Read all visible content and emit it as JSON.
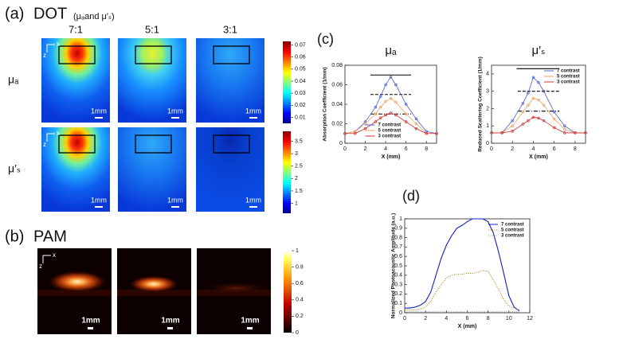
{
  "panel_a": {
    "label": "(a)",
    "title": "DOT",
    "subtitle": "(μₐand μ′ₛ)",
    "columns": [
      "7:1",
      "5:1",
      "3:1"
    ],
    "rows": [
      "μₐ",
      "μ′ₛ"
    ],
    "axis_x": "x",
    "axis_z": "z",
    "scale_label": "1mm",
    "colorbars": [
      {
        "lim": [
          0.005,
          0.073
        ],
        "ticks": [
          0.01,
          0.02,
          0.03,
          0.04,
          0.05,
          0.06,
          0.07
        ]
      },
      {
        "lim": [
          0.6,
          3.9
        ],
        "ticks": [
          1,
          1.5,
          2,
          2.5,
          3,
          3.5
        ]
      }
    ]
  },
  "panel_b": {
    "label": "(b)",
    "title": "PAM",
    "axis_x": "x",
    "axis_z": "z",
    "scale_label": "1mm",
    "colorbar": {
      "lim": [
        0,
        1
      ],
      "ticks": [
        0,
        0.2,
        0.4,
        0.6,
        0.8,
        1
      ]
    }
  },
  "panel_c": {
    "label": "(c)"
  },
  "panel_d": {
    "label": "(d)"
  },
  "chart_data": [
    {
      "type": "line",
      "title": "μₐ",
      "xlabel": "X (mm)",
      "ylabel": "Absorption Coefficient (1/mm)",
      "legend": "lower center",
      "markers": true,
      "x": [
        0,
        1,
        2,
        3,
        3.5,
        4,
        4.5,
        5,
        6,
        7,
        8,
        9
      ],
      "xlim": [
        0,
        9
      ],
      "xticks": [
        0,
        2,
        4,
        6,
        8
      ],
      "ylim": [
        0,
        0.08
      ],
      "yticks": [
        0,
        0.02,
        0.04,
        0.06,
        0.08
      ],
      "series": [
        {
          "name": "7 contrast",
          "color": "#4a5fd0",
          "values": [
            0.01,
            0.012,
            0.022,
            0.037,
            0.048,
            0.06,
            0.068,
            0.06,
            0.04,
            0.025,
            0.012,
            0.01
          ]
        },
        {
          "name": "5 contrast",
          "color": "#f0a060",
          "values": [
            0.01,
            0.012,
            0.02,
            0.03,
            0.037,
            0.043,
            0.046,
            0.042,
            0.03,
            0.02,
            0.01,
            0.01
          ]
        },
        {
          "name": "3 contrast",
          "color": "#d03030",
          "values": [
            0.01,
            0.01,
            0.015,
            0.022,
            0.026,
            0.029,
            0.031,
            0.029,
            0.022,
            0.015,
            0.01,
            0.01
          ]
        }
      ],
      "reference_lines": [
        {
          "value": 0.07,
          "x": [
            2.5,
            6.5
          ],
          "dash": "solid"
        },
        {
          "value": 0.05,
          "x": [
            2.5,
            6.5
          ],
          "dash": "dashed"
        },
        {
          "value": 0.03,
          "x": [
            2.5,
            6.5
          ],
          "dash": "dashdot"
        }
      ]
    },
    {
      "type": "line",
      "title": "μ′ₛ",
      "xlabel": "X (mm)",
      "ylabel": "Reduced Scattering Coefficient (1/mm)",
      "legend": "upper right",
      "markers": true,
      "x": [
        0,
        1,
        2,
        3,
        3.5,
        4,
        4.5,
        5,
        6,
        7,
        8,
        9
      ],
      "xlim": [
        0,
        9
      ],
      "xticks": [
        0,
        2,
        4,
        6,
        8
      ],
      "ylim": [
        0,
        4.5
      ],
      "yticks": [
        0,
        1,
        2,
        3,
        4
      ],
      "series": [
        {
          "name": "7 contrast",
          "color": "#4a5fd0",
          "values": [
            0.6,
            0.6,
            1.3,
            2.3,
            2.9,
            3.8,
            3.5,
            3.0,
            1.8,
            1.0,
            0.6,
            0.6
          ]
        },
        {
          "name": "5 contrast",
          "color": "#f0a060",
          "values": [
            0.6,
            0.6,
            1.0,
            1.8,
            2.2,
            2.6,
            2.5,
            2.2,
            1.4,
            0.8,
            0.6,
            0.6
          ]
        },
        {
          "name": "3 contrast",
          "color": "#d03030",
          "values": [
            0.6,
            0.6,
            0.7,
            1.1,
            1.3,
            1.5,
            1.45,
            1.3,
            0.9,
            0.6,
            0.6,
            0.6
          ]
        }
      ],
      "reference_lines": [
        {
          "value": 4.3,
          "x": [
            2.4,
            6.5
          ],
          "dash": "solid"
        },
        {
          "value": 3.0,
          "x": [
            2.5,
            6.5
          ],
          "dash": "dashed"
        },
        {
          "value": 1.85,
          "x": [
            2.5,
            6.5
          ],
          "dash": "dashdot"
        }
      ]
    },
    {
      "type": "line",
      "xlabel": "X (mm)",
      "ylabel": "Normalized Photoacoustic Amplitude (a.u.)",
      "legend": "upper right",
      "markers": false,
      "x": [
        0,
        0.5,
        1,
        1.5,
        2,
        2.5,
        3,
        3.5,
        4,
        4.5,
        5,
        5.5,
        6,
        6.5,
        7,
        7.5,
        8,
        8.5,
        9,
        9.5,
        10,
        10.5,
        11
      ],
      "xlim": [
        0,
        12
      ],
      "xticks": [
        0,
        2,
        4,
        6,
        8,
        10,
        12
      ],
      "ylim": [
        0,
        1
      ],
      "yticks": [
        0,
        0.1,
        0.2,
        0.3,
        0.4,
        0.5,
        0.6,
        0.7,
        0.8,
        0.9,
        1
      ],
      "series": [
        {
          "name": "7 contrast",
          "color": "#1020c0",
          "values": [
            0.05,
            0.05,
            0.06,
            0.08,
            0.12,
            0.22,
            0.4,
            0.58,
            0.72,
            0.82,
            0.9,
            0.93,
            0.97,
            1,
            1,
            1,
            0.97,
            0.85,
            0.65,
            0.42,
            0.18,
            0.06,
            0.02
          ]
        },
        {
          "name": "5 contrast",
          "color": "#b08020",
          "dash": "dotted",
          "values": [
            0.03,
            0.03,
            0.03,
            0.04,
            0.06,
            0.12,
            0.22,
            0.3,
            0.37,
            0.4,
            0.41,
            0.41,
            0.42,
            0.42,
            0.43,
            0.45,
            0.44,
            0.35,
            0.25,
            0.14,
            0.07,
            0.05,
            0.03
          ]
        },
        {
          "name": "3 contrast",
          "color": "#a0a0a0",
          "dash": "dotted",
          "values": [
            0.01,
            0.01,
            0.01,
            0.01,
            0.01,
            0.01,
            0.01,
            0.01,
            0.01,
            0.01,
            0.01,
            0.01,
            0.01,
            0.01,
            0.01,
            0.01,
            0.01,
            0.01,
            0.01,
            0.01,
            0.01,
            0.01,
            0.01
          ]
        }
      ]
    }
  ]
}
